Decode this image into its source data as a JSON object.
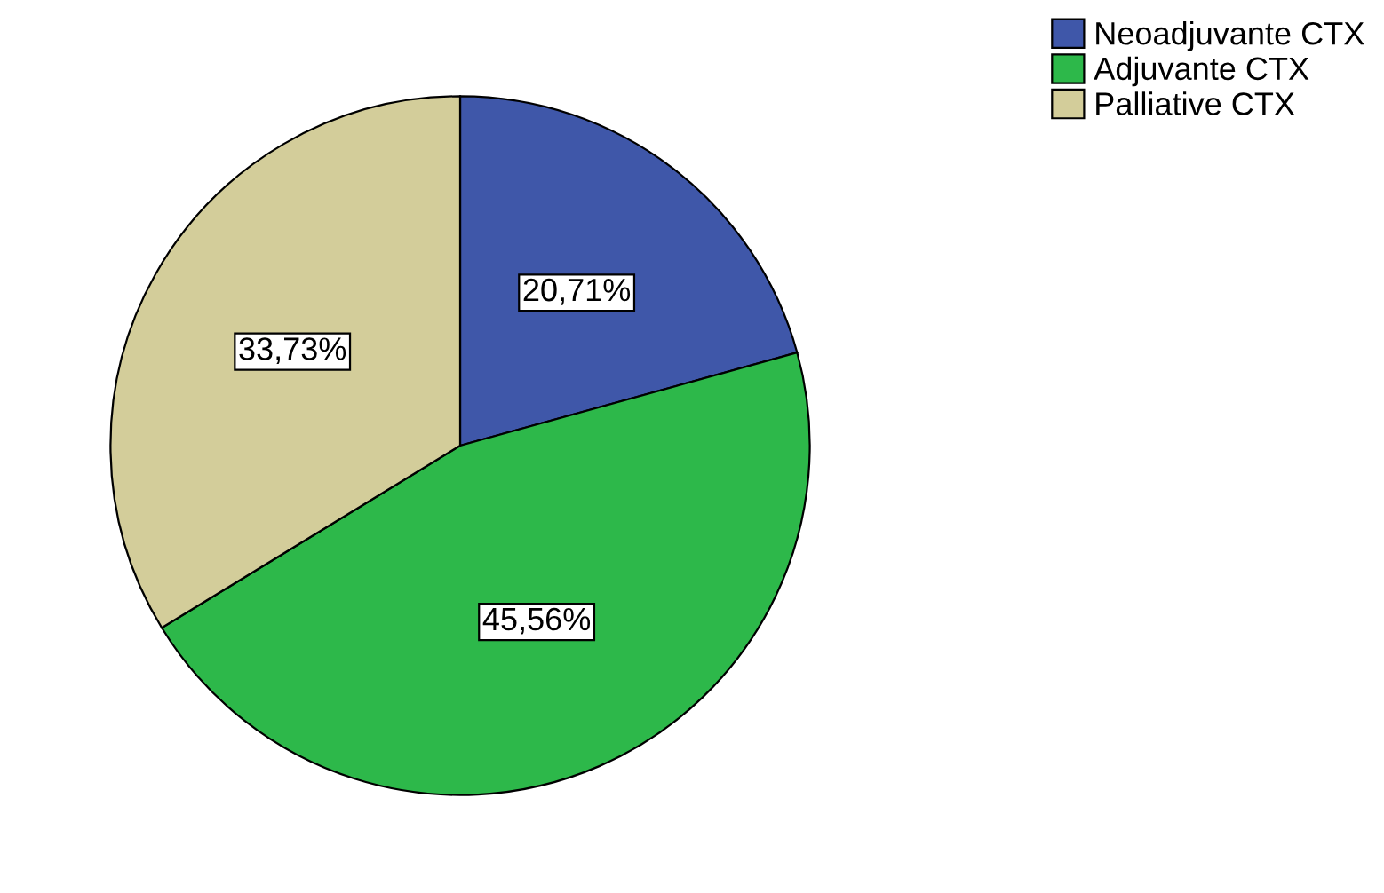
{
  "chart_data": {
    "type": "pie",
    "categories": [
      "Neoadjuvante CTX",
      "Adjuvante CTX",
      "Palliative CTX"
    ],
    "values": [
      20.71,
      45.56,
      33.73
    ],
    "colors": [
      "#3f57a9",
      "#2db84a",
      "#d3cd9a"
    ],
    "value_labels": [
      "20,71%",
      "45,56%",
      "33,73%"
    ],
    "legend": "top right"
  }
}
